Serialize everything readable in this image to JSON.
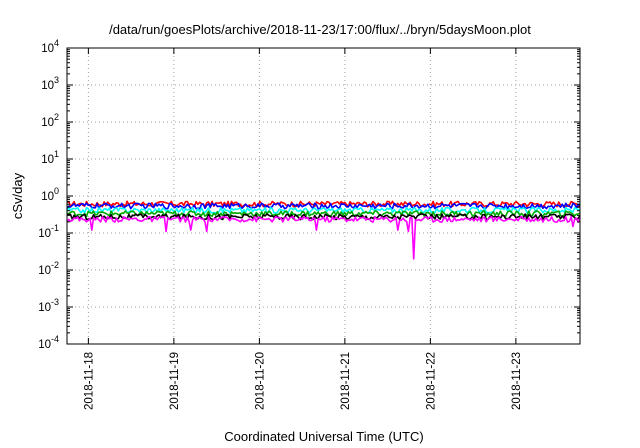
{
  "chart_data": {
    "type": "line",
    "title": "/data/run/goesPlots/archive/2018-11-23/17:00/flux/../bryn/5daysMoon.plot",
    "xlabel": "Coordinated Universal Time (UTC)",
    "ylabel": "cSv/day",
    "yscale": "log",
    "ylim": [
      0.0001,
      10000
    ],
    "y_ticks": [
      {
        "base": "10",
        "exp": "-4"
      },
      {
        "base": "10",
        "exp": "-3"
      },
      {
        "base": "10",
        "exp": "-2"
      },
      {
        "base": "10",
        "exp": "-1"
      },
      {
        "base": "10",
        "exp": "0"
      },
      {
        "base": "10",
        "exp": "1"
      },
      {
        "base": "10",
        "exp": "2"
      },
      {
        "base": "10",
        "exp": "3"
      },
      {
        "base": "10",
        "exp": "4"
      }
    ],
    "xlim": [
      "2018-11-17T18:00",
      "2018-11-23T18:00"
    ],
    "x_ticks": [
      "2018-11-18",
      "2018-11-19",
      "2018-11-20",
      "2018-11-21",
      "2018-11-22",
      "2018-11-23"
    ],
    "grid": true,
    "series": [
      {
        "color": "#ff0000",
        "base": 0.62,
        "dips": []
      },
      {
        "color": "#0000ff",
        "base": 0.55,
        "dips": []
      },
      {
        "color": "#00ffff",
        "base": 0.42,
        "dips": []
      },
      {
        "color": "#00aa00",
        "base": 0.34,
        "dips": []
      },
      {
        "color": "#000000",
        "base": 0.28,
        "dips": []
      },
      {
        "color": "#ff00ff",
        "base": 0.24,
        "dips": [
          {
            "x": "2018-11-18T01:00",
            "y": 0.12
          },
          {
            "x": "2018-11-18T22:00",
            "y": 0.11
          },
          {
            "x": "2018-11-19T05:00",
            "y": 0.12
          },
          {
            "x": "2018-11-19T09:00",
            "y": 0.11
          },
          {
            "x": "2018-11-20T16:00",
            "y": 0.12
          },
          {
            "x": "2018-11-21T15:00",
            "y": 0.12
          },
          {
            "x": "2018-11-21T18:00",
            "y": 0.11
          },
          {
            "x": "2018-11-21T19:30",
            "y": 0.02
          },
          {
            "x": "2018-11-23T16:00",
            "y": 0.15
          }
        ]
      }
    ]
  }
}
